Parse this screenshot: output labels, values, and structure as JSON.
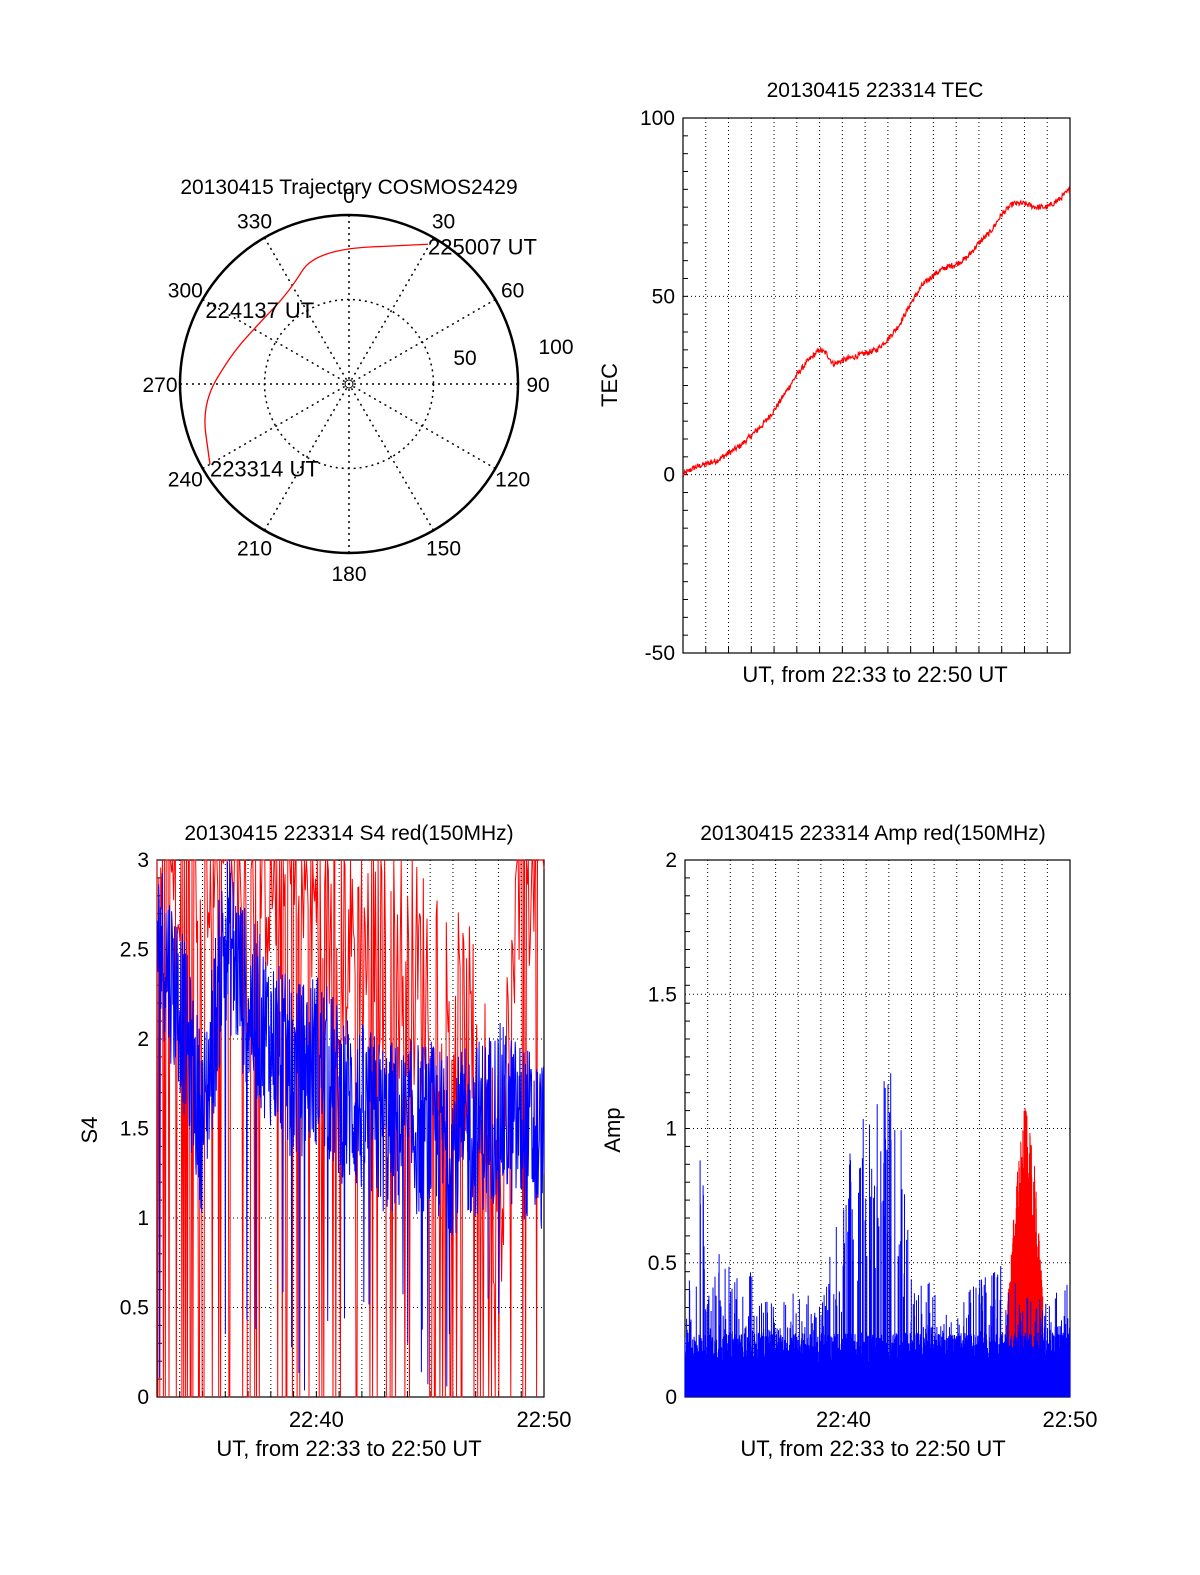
{
  "chart_data": [
    {
      "type": "polar",
      "title": "20130415 Trajectory COSMOS2429",
      "azimuth_labels": [
        "0",
        "30",
        "60",
        "90",
        "120",
        "150",
        "180",
        "210",
        "240",
        "270",
        "300",
        "330"
      ],
      "elevation_labels": [
        "50",
        "100"
      ],
      "track": {
        "color": "#ff0000",
        "points": [
          {
            "az": 240,
            "r": 0.95
          },
          {
            "az": 262,
            "r": 0.88
          },
          {
            "az": 284,
            "r": 0.72
          },
          {
            "az": 305,
            "r": 0.64
          },
          {
            "az": 327,
            "r": 0.65
          },
          {
            "az": 346,
            "r": 0.82
          },
          {
            "az": 29.5,
            "r": 0.95
          }
        ]
      },
      "annotations": [
        {
          "text": "223314 UT",
          "az": 240,
          "r": 0.95
        },
        {
          "text": "224137 UT",
          "az": 305,
          "r": 0.64
        },
        {
          "text": "225007 UT",
          "az": 29.5,
          "r": 0.95
        }
      ]
    },
    {
      "type": "line",
      "title": "20130415 223314 TEC",
      "xlabel": "UT, from 22:33 to 22:50 UT",
      "ylabel": "TEC",
      "ylim": [
        -50,
        100
      ],
      "yticks": [
        "-50",
        "0",
        "50",
        "100"
      ],
      "xlim_minutes": [
        0,
        17
      ],
      "grid": true,
      "series": [
        {
          "color": "#ff0000",
          "x": [
            0,
            0.5,
            1,
            1.5,
            2,
            2.5,
            3,
            3.5,
            4,
            4.5,
            5,
            5.5,
            6,
            6.3,
            6.6,
            7,
            7.5,
            8,
            8.5,
            9,
            9.5,
            10,
            10.5,
            11,
            11.5,
            12,
            12.5,
            13,
            13.5,
            14,
            14.5,
            15,
            15.5,
            16,
            16.5,
            17
          ],
          "y": [
            0,
            2,
            3,
            4,
            6,
            8,
            11,
            14,
            18,
            23,
            28,
            32,
            35,
            34,
            31,
            32,
            33,
            34,
            35,
            38,
            42,
            48,
            53,
            56,
            58,
            59,
            61,
            65,
            68,
            73,
            76,
            76,
            75,
            75,
            77,
            80
          ]
        }
      ]
    },
    {
      "type": "line",
      "title": "20130415 223314 S4 red(150MHz)",
      "xlabel": "UT, from 22:33 to 22:50 UT",
      "ylabel": "S4",
      "ylim": [
        0,
        3
      ],
      "yticks": [
        "0",
        "0.5",
        "1",
        "1.5",
        "2",
        "2.5",
        "3"
      ],
      "xticks": [
        {
          "label": "22:40",
          "minute": 7
        },
        {
          "label": "22:50",
          "minute": 17
        }
      ],
      "xlim_minutes": [
        0,
        17
      ],
      "grid": true,
      "series": [
        {
          "color": "#ff0000",
          "description_levels": [
            [
              0,
              3.0
            ],
            [
              2,
              2.9
            ],
            [
              4,
              2.8
            ],
            [
              6,
              2.6
            ],
            [
              8,
              2.3
            ],
            [
              10,
              2.2
            ],
            [
              12,
              2.0
            ],
            [
              14,
              1.6
            ],
            [
              15,
              0.8
            ],
            [
              16,
              2.7
            ],
            [
              17,
              3.0
            ]
          ]
        },
        {
          "color": "#0000ff",
          "description_levels": [
            [
              0,
              2.6
            ],
            [
              1,
              2.2
            ],
            [
              2,
              1.5
            ],
            [
              3,
              2.6
            ],
            [
              4,
              2.2
            ],
            [
              5,
              2.0
            ],
            [
              6,
              1.8
            ],
            [
              7,
              1.9
            ],
            [
              8,
              1.7
            ],
            [
              9,
              1.6
            ],
            [
              10,
              1.5
            ],
            [
              11,
              1.5
            ],
            [
              12,
              1.5
            ],
            [
              13,
              1.4
            ],
            [
              14,
              1.5
            ],
            [
              15,
              1.6
            ],
            [
              16,
              1.5
            ],
            [
              17,
              1.4
            ]
          ]
        }
      ]
    },
    {
      "type": "line",
      "title": "20130415 223314 Amp red(150MHz)",
      "xlabel": "UT, from 22:33 to 22:50 UT",
      "ylabel": "Amp",
      "ylim": [
        0,
        2
      ],
      "yticks": [
        "0",
        "0.5",
        "1",
        "1.5",
        "2"
      ],
      "xticks": [
        {
          "label": "22:40",
          "minute": 7
        },
        {
          "label": "22:50",
          "minute": 17
        }
      ],
      "xlim_minutes": [
        0,
        17
      ],
      "grid": true,
      "series": [
        {
          "color": "#0000ff",
          "description_levels": [
            [
              0,
              0.25
            ],
            [
              0.7,
              0.97
            ],
            [
              1,
              0.5
            ],
            [
              2,
              0.6
            ],
            [
              3,
              0.45
            ],
            [
              4,
              0.35
            ],
            [
              5,
              0.4
            ],
            [
              6,
              0.35
            ],
            [
              7.5,
              1.0
            ],
            [
              9.3,
              1.3
            ],
            [
              10,
              0.45
            ],
            [
              12,
              0.4
            ],
            [
              13,
              0.45
            ],
            [
              14,
              0.5
            ],
            [
              15,
              0.4
            ],
            [
              16,
              0.35
            ],
            [
              17,
              0.45
            ]
          ]
        },
        {
          "color": "#ff0000",
          "description_levels": [
            [
              14.2,
              0.3
            ],
            [
              14.6,
              0.8
            ],
            [
              15.0,
              1.1
            ],
            [
              15.4,
              0.9
            ],
            [
              15.8,
              0.4
            ]
          ]
        }
      ]
    }
  ]
}
